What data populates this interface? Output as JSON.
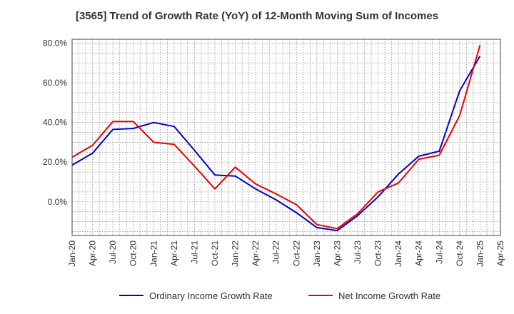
{
  "chart_data": {
    "type": "line",
    "title": "[3565]  Trend of Growth Rate (YoY) of 12-Month Moving Sum of Incomes",
    "xlabel": "",
    "ylabel": "",
    "x_tick_labels": [
      "Jan-20",
      "Apr-20",
      "Jul-20",
      "Oct-20",
      "Jan-21",
      "Apr-21",
      "Jul-21",
      "Oct-21",
      "Jan-22",
      "Apr-22",
      "Jul-22",
      "Oct-22",
      "Jan-23",
      "Apr-23",
      "Jul-23",
      "Oct-23",
      "Jan-24",
      "Apr-24",
      "Jul-24",
      "Oct-24",
      "Jan-25",
      "Apr-25"
    ],
    "y_ticks": [
      0,
      20,
      40,
      60,
      80
    ],
    "y_tick_labels": [
      "0.0%",
      "20.0%",
      "40.0%",
      "60.0%",
      "80.0%"
    ],
    "ylim": [
      -17,
      82
    ],
    "grid": true,
    "legend_position": "bottom",
    "series": [
      {
        "name": "Ordinary Income Growth Rate",
        "color": "#0000cc",
        "values": [
          18.5,
          24.5,
          36.5,
          37,
          40,
          38,
          26,
          13.5,
          13,
          6.5,
          1,
          -5.5,
          -13,
          -14.5,
          -7,
          2.5,
          14,
          23,
          25.5,
          56,
          73.5
        ]
      },
      {
        "name": "Net Income Growth Rate",
        "color": "#ee0000",
        "values": [
          22.5,
          28.5,
          40.5,
          40.5,
          30,
          29,
          18,
          6.5,
          17.5,
          9,
          4,
          -1.5,
          -11.5,
          -13.5,
          -6,
          5,
          9.5,
          21.5,
          23.5,
          43.5,
          79
        ]
      }
    ]
  }
}
